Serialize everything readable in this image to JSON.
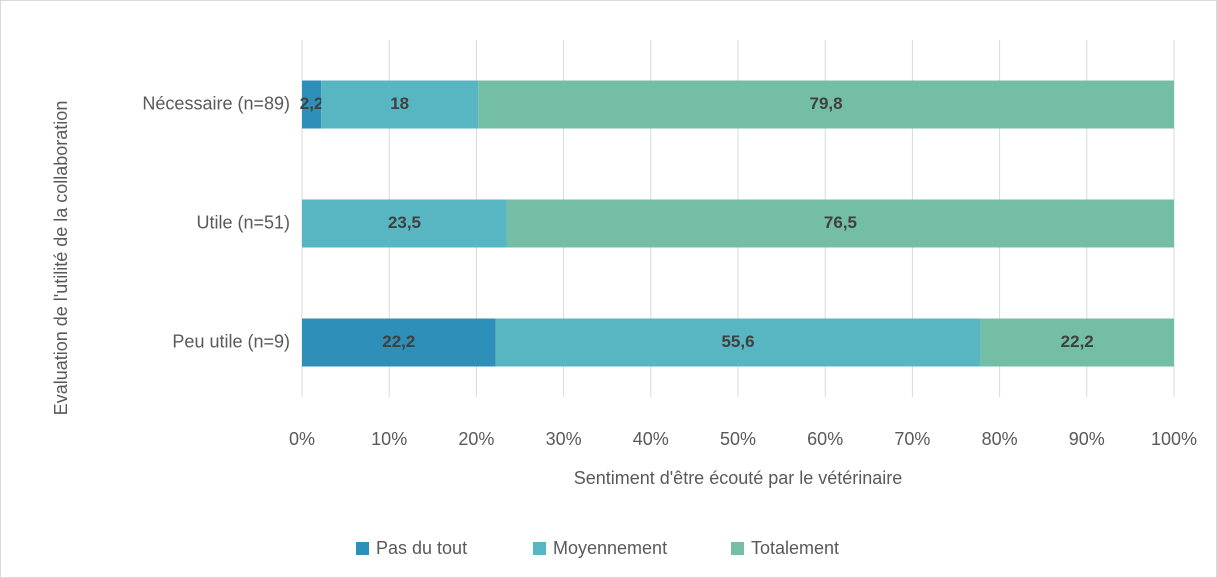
{
  "chart_data": {
    "type": "stacked-bar-horizontal",
    "x_label": "Sentiment d'être écouté par le vétérinaire",
    "y_label": "Evaluation de l'utilité de la collaboration",
    "categories": [
      "Nécessaire (n=89)",
      "Utile (n=51)",
      "Peu utile (n=9)"
    ],
    "series": [
      {
        "name": "Pas du tout",
        "color": "#2e8fb8",
        "values": [
          2.2,
          null,
          22.2
        ],
        "value_labels": [
          "2,2",
          null,
          "22,2"
        ]
      },
      {
        "name": "Moyennement",
        "color": "#57b6c1",
        "values": [
          18,
          23.5,
          55.6
        ],
        "value_labels": [
          "18",
          "23,5",
          "55,6"
        ]
      },
      {
        "name": "Totalement",
        "color": "#74bea6",
        "values": [
          79.8,
          76.5,
          22.2
        ],
        "value_labels": [
          "79,8",
          "76,5",
          "22,2"
        ]
      }
    ],
    "xlim": [
      0,
      100
    ],
    "xticks": [
      {
        "value": 0,
        "label": "0%"
      },
      {
        "value": 10,
        "label": "10%"
      },
      {
        "value": 20,
        "label": "20%"
      },
      {
        "value": 30,
        "label": "30%"
      },
      {
        "value": 40,
        "label": "40%"
      },
      {
        "value": 50,
        "label": "50%"
      },
      {
        "value": 60,
        "label": "60%"
      },
      {
        "value": 70,
        "label": "70%"
      },
      {
        "value": 80,
        "label": "80%"
      },
      {
        "value": 90,
        "label": "90%"
      },
      {
        "value": 100,
        "label": "100%"
      }
    ],
    "grid": true,
    "legend": "bottom"
  }
}
